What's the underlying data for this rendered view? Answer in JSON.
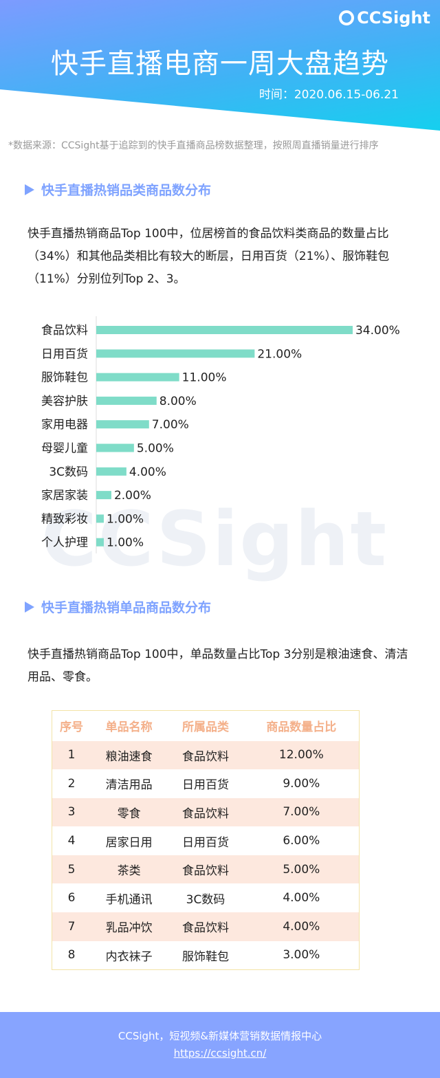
{
  "header": {
    "logo": "CCSight",
    "title": "快手直播电商一周大盘趋势",
    "date": "时间：2020.06.15-06.21"
  },
  "source": "*数据来源：CCSight基于追踪到的快手直播商品榜数据整理，按照周直播销量进行排序",
  "section1": {
    "title": "快手直播热销品类商品数分布",
    "text": "快手直播热销商品Top 100中，位居榜首的食品饮料类商品的数量占比（34%）和其他品类相比有较大的断层，日用百货（21%）、服饰鞋包（11%）分别位列Top 2、3。"
  },
  "chart_data": {
    "type": "bar",
    "orientation": "horizontal",
    "categories": [
      "食品饮料",
      "日用百货",
      "服饰鞋包",
      "美容护肤",
      "家用电器",
      "母婴儿童",
      "3C数码",
      "家居家装",
      "精致彩妆",
      "个人护理"
    ],
    "values": [
      34,
      21,
      11,
      8,
      7,
      5,
      4,
      2,
      1,
      1
    ],
    "value_labels": [
      "34.00%",
      "21.00%",
      "11.00%",
      "8.00%",
      "7.00%",
      "5.00%",
      "4.00%",
      "2.00%",
      "1.00%",
      "1.00%"
    ],
    "color": "#7fdcc8",
    "grid": false
  },
  "watermark": "CCSight",
  "section2": {
    "title": "快手直播热销单品商品数分布",
    "text": "快手直播热销商品Top 100中，单品数量占比Top 3分别是粮油速食、清洁用品、零食。"
  },
  "table": {
    "headers": [
      "序号",
      "单品名称",
      "所属品类",
      "商品数量占比"
    ],
    "rows": [
      [
        "1",
        "粮油速食",
        "食品饮料",
        "12.00%"
      ],
      [
        "2",
        "清洁用品",
        "日用百货",
        "9.00%"
      ],
      [
        "3",
        "零食",
        "食品饮料",
        "7.00%"
      ],
      [
        "4",
        "居家日用",
        "日用百货",
        "6.00%"
      ],
      [
        "5",
        "茶类",
        "食品饮料",
        "5.00%"
      ],
      [
        "6",
        "手机通讯",
        "3C数码",
        "4.00%"
      ],
      [
        "7",
        "乳品冲饮",
        "食品饮料",
        "4.00%"
      ],
      [
        "8",
        "内衣袜子",
        "服饰鞋包",
        "3.00%"
      ]
    ]
  },
  "footer": {
    "text": "CCSight，短视频&新媒体营销数据情报中心",
    "link": "https://ccsight.cn/"
  }
}
